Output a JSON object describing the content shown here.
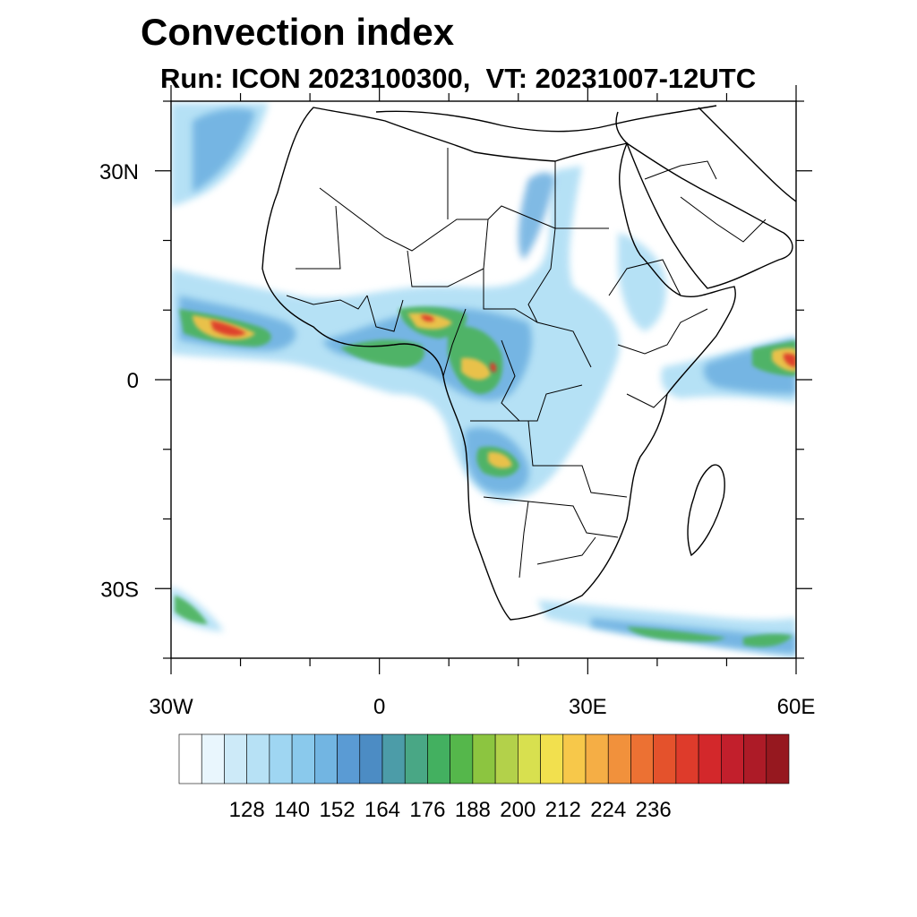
{
  "title": "Convection index",
  "subtitle": "Run: ICON 2023100300,  VT: 20231007-12UTC",
  "map": {
    "extent": {
      "lon": [
        -30,
        60
      ],
      "lat": [
        -40,
        40
      ]
    },
    "lat_ticks": [
      {
        "value": 30,
        "label": "30N"
      },
      {
        "value": 0,
        "label": "0"
      },
      {
        "value": -30,
        "label": "30S"
      }
    ],
    "lon_ticks": [
      {
        "value": -30,
        "label": "30W"
      },
      {
        "value": 0,
        "label": "0"
      },
      {
        "value": 30,
        "label": "30E"
      },
      {
        "value": 60,
        "label": "60E"
      }
    ]
  },
  "colorbar": {
    "colors": [
      "#ffffff",
      "#e9f6fd",
      "#cdeaf8",
      "#b7e1f5",
      "#9fd6f2",
      "#8ac9ec",
      "#72b5e2",
      "#5a9bd4",
      "#4c8cc4",
      "#4c9ca8",
      "#49a785",
      "#43b060",
      "#55b74b",
      "#8cc540",
      "#b3d14a",
      "#d8e04f",
      "#f2e04e",
      "#f7c84a",
      "#f5ae45",
      "#f1913c",
      "#ec7133",
      "#e4522c",
      "#de3b2b",
      "#d3282b",
      "#c21f2c",
      "#ad1b27",
      "#96181f"
    ],
    "labels": [
      "128",
      "140",
      "152",
      "164",
      "176",
      "188",
      "200",
      "212",
      "224",
      "236"
    ]
  }
}
